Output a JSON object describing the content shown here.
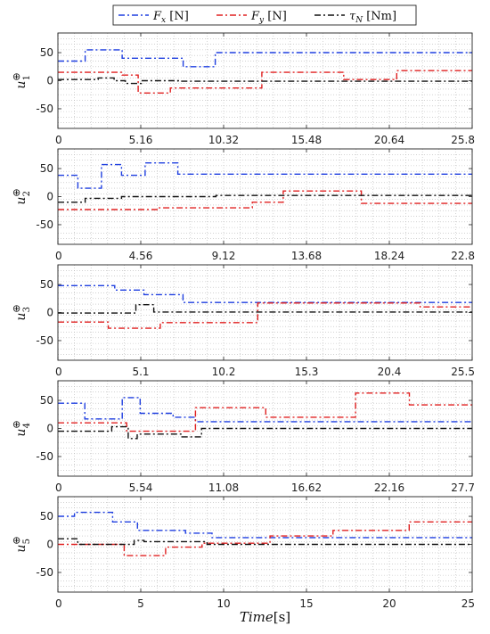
{
  "chart_data": {
    "type": "line",
    "xlabel_italic": "Time",
    "xlabel_unit": "[s]",
    "legend": {
      "position": "top-center",
      "entries": [
        {
          "sym": "F",
          "sub": "x",
          "unit": " [N]",
          "color": "#1f3fe0"
        },
        {
          "sym": "F",
          "sub": "y",
          "unit": " [N]",
          "color": "#e02020"
        },
        {
          "sym": "τ",
          "sub": "N",
          "unit": " [Nm]",
          "color": "#111111"
        }
      ]
    },
    "colors": {
      "fx": "#1f3fe0",
      "fy": "#e02020",
      "tau": "#111111"
    },
    "grid": true,
    "panels": [
      {
        "ylabel": "u",
        "ysup": "⊕",
        "ysub": "1",
        "xlim": [
          0,
          25.8
        ],
        "ylim": [
          -85,
          85
        ],
        "xticks": [
          "0",
          "5.16",
          "10.32",
          "15.48",
          "20.64",
          "25.8"
        ],
        "yticks": [
          "50",
          "0",
          "-50"
        ],
        "series": [
          {
            "key": "fx",
            "x": [
              0,
              1.7,
              1.7,
              4,
              4,
              7.8,
              7.8,
              9.8,
              9.8,
              25.8
            ],
            "y": [
              35,
              35,
              55,
              55,
              40,
              40,
              25,
              25,
              50,
              50
            ]
          },
          {
            "key": "fy",
            "x": [
              0,
              4,
              4,
              5,
              5,
              7,
              7,
              12.7,
              12.7,
              17.8,
              17.8,
              21.1,
              21.1,
              25.8
            ],
            "y": [
              15,
              15,
              10,
              10,
              -22,
              -22,
              -13,
              -13,
              15,
              15,
              2,
              2,
              18,
              18
            ]
          },
          {
            "key": "tau",
            "x": [
              0,
              2.5,
              2.5,
              3.5,
              3.5,
              4.2,
              4.2,
              5.2,
              5.2,
              7.5,
              7.5,
              25.8
            ],
            "y": [
              2,
              2,
              5,
              5,
              0,
              0,
              -5,
              -5,
              0,
              0,
              -1,
              -1
            ]
          }
        ]
      },
      {
        "ylabel": "u",
        "ysup": "⊕",
        "ysub": "2",
        "xlim": [
          0,
          22.8
        ],
        "ylim": [
          -85,
          85
        ],
        "xticks": [
          "0",
          "4.56",
          "9.12",
          "13.68",
          "18.24",
          "22.8"
        ],
        "yticks": [
          "50",
          "0",
          "-50"
        ],
        "series": [
          {
            "key": "fx",
            "x": [
              0,
              1.1,
              1.1,
              2.4,
              2.4,
              3.5,
              3.5,
              4.8,
              4.8,
              6.6,
              6.6,
              22.8
            ],
            "y": [
              38,
              38,
              15,
              15,
              57,
              57,
              38,
              38,
              60,
              60,
              40,
              40
            ]
          },
          {
            "key": "fy",
            "x": [
              0,
              5.5,
              5.5,
              10.7,
              10.7,
              12.4,
              12.4,
              16.7,
              16.7,
              22.8
            ],
            "y": [
              -23,
              -23,
              -20,
              -20,
              -10,
              -10,
              10,
              10,
              -12,
              -12
            ]
          },
          {
            "key": "tau",
            "x": [
              0,
              1.5,
              1.5,
              3.5,
              3.5,
              8.7,
              8.7,
              22.8
            ],
            "y": [
              -10,
              -10,
              -3,
              -3,
              0,
              0,
              2,
              2
            ]
          }
        ]
      },
      {
        "ylabel": "u",
        "ysup": "⊕",
        "ysub": "3",
        "xlim": [
          0,
          25.5
        ],
        "ylim": [
          -85,
          85
        ],
        "xticks": [
          "0",
          "5.1",
          "10.2",
          "15.3",
          "20.4",
          "25.5"
        ],
        "yticks": [
          "50",
          "0",
          "-50"
        ],
        "series": [
          {
            "key": "fx",
            "x": [
              0,
              3.5,
              3.5,
              5.3,
              5.3,
              7.7,
              7.7,
              25.5
            ],
            "y": [
              48,
              48,
              40,
              40,
              32,
              32,
              18,
              18
            ]
          },
          {
            "key": "fy",
            "x": [
              0,
              3.1,
              3.1,
              6.3,
              6.3,
              12.3,
              12.3,
              22.3,
              22.3,
              25.5
            ],
            "y": [
              -17,
              -17,
              -28,
              -28,
              -18,
              -18,
              17,
              17,
              10,
              10
            ]
          },
          {
            "key": "tau",
            "x": [
              0,
              4.8,
              4.8,
              5.9,
              5.9,
              25.5
            ],
            "y": [
              -1,
              -1,
              14,
              14,
              1,
              1
            ]
          }
        ]
      },
      {
        "ylabel": "u",
        "ysup": "⊕",
        "ysub": "4",
        "xlim": [
          0,
          27.7
        ],
        "ylim": [
          -85,
          85
        ],
        "xticks": [
          "0",
          "5.54",
          "11.08",
          "16.62",
          "22.16",
          "27.7"
        ],
        "yticks": [
          "50",
          "0",
          "-50"
        ],
        "series": [
          {
            "key": "fx",
            "x": [
              0,
              1.8,
              1.8,
              4.3,
              4.3,
              5.5,
              5.5,
              7.7,
              7.7,
              9.2,
              9.2,
              27.7
            ],
            "y": [
              45,
              45,
              17,
              17,
              55,
              55,
              27,
              27,
              20,
              20,
              12,
              12
            ]
          },
          {
            "key": "fy",
            "x": [
              0,
              4.6,
              4.6,
              9.2,
              9.2,
              13.9,
              13.9,
              19.9,
              19.9,
              23.5,
              23.5,
              27.7
            ],
            "y": [
              10,
              10,
              -5,
              -5,
              37,
              37,
              20,
              20,
              63,
              63,
              42,
              42
            ]
          },
          {
            "key": "tau",
            "x": [
              0,
              3.6,
              3.6,
              4.7,
              4.7,
              5.3,
              5.3,
              8.3,
              8.3,
              9.6,
              9.6,
              27.7
            ],
            "y": [
              -5,
              -5,
              3,
              3,
              -18,
              -18,
              -10,
              -10,
              -15,
              -15,
              0,
              0
            ]
          }
        ]
      },
      {
        "ylabel": "u",
        "ysup": "⊕",
        "ysub": "5",
        "xlim": [
          0,
          25
        ],
        "ylim": [
          -85,
          85
        ],
        "xticks": [
          "0",
          "5",
          "10",
          "15",
          "20",
          "25"
        ],
        "yticks": [
          "50",
          "0",
          "-50"
        ],
        "series": [
          {
            "key": "fx",
            "x": [
              0,
              1.0,
              1.0,
              3.3,
              3.3,
              4.8,
              4.8,
              7.7,
              7.7,
              9.3,
              9.3,
              25
            ],
            "y": [
              50,
              50,
              57,
              57,
              40,
              40,
              25,
              25,
              20,
              20,
              12,
              12
            ]
          },
          {
            "key": "fy",
            "x": [
              0,
              4.0,
              4.0,
              6.5,
              6.5,
              8.7,
              8.7,
              12.8,
              12.8,
              16.6,
              16.6,
              21.2,
              21.2,
              25
            ],
            "y": [
              0,
              0,
              -20,
              -20,
              -5,
              -5,
              2,
              2,
              15,
              15,
              25,
              25,
              40,
              40
            ]
          },
          {
            "key": "tau",
            "x": [
              0,
              1.2,
              1.2,
              4.6,
              4.6,
              5.2,
              5.2,
              9.0,
              9.0,
              25
            ],
            "y": [
              10,
              10,
              0,
              0,
              7,
              7,
              5,
              5,
              0,
              0
            ]
          }
        ]
      }
    ]
  }
}
